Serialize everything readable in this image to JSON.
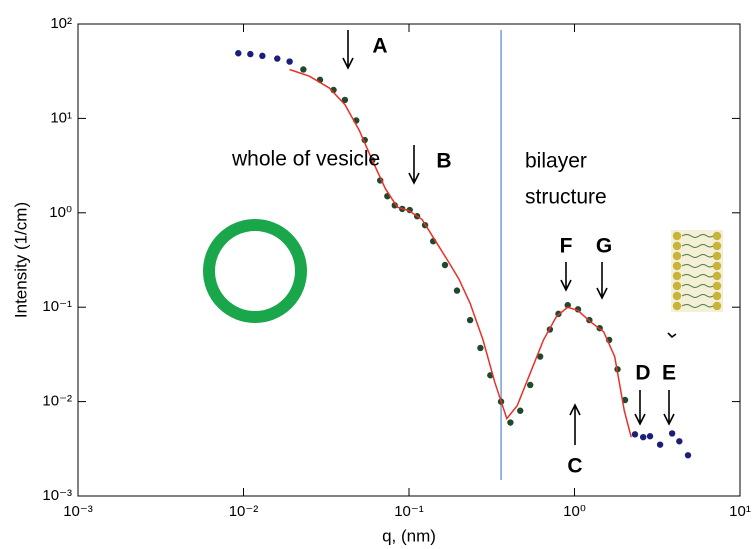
{
  "chart_data": {
    "type": "scatter",
    "xlabel": "q, (nm)",
    "ylabel": "Intensity  (1/cm)",
    "log_x": true,
    "log_y": true,
    "xlim": [
      0.001,
      10
    ],
    "ylim": [
      0.001,
      100
    ],
    "xticks": [
      {
        "value": 0.001,
        "label": "10⁻³"
      },
      {
        "value": 0.01,
        "label": "10⁻²"
      },
      {
        "value": 0.1,
        "label": "10⁻¹"
      },
      {
        "value": 1,
        "label": "10⁰"
      },
      {
        "value": 10,
        "label": "10¹"
      }
    ],
    "yticks": [
      {
        "value": 0.001,
        "label": "10⁻³"
      },
      {
        "value": 0.01,
        "label": "10⁻²"
      },
      {
        "value": 0.1,
        "label": "10⁻¹"
      },
      {
        "value": 1,
        "label": "10⁰"
      },
      {
        "value": 10,
        "label": "10¹"
      },
      {
        "value": 100,
        "label": "10²"
      }
    ],
    "color": "#1d4a2a",
    "x": [
      0.0093,
      0.011,
      0.013,
      0.016,
      0.019,
      0.023,
      0.029,
      0.035,
      0.041,
      0.048,
      0.054,
      0.06,
      0.067,
      0.074,
      0.082,
      0.091,
      0.101,
      0.112,
      0.125,
      0.14,
      0.165,
      0.195,
      0.234,
      0.27,
      0.31,
      0.36,
      0.41,
      0.47,
      0.54,
      0.62,
      0.71,
      0.8,
      0.91,
      1.05,
      1.23,
      1.42,
      1.62,
      1.82,
      2.02,
      2.32,
      2.6,
      2.86,
      3.29,
      3.89,
      4.3,
      4.85
    ],
    "values": [
      49,
      48,
      46,
      43,
      40,
      33,
      25.6,
      20,
      15.7,
      9.5,
      5.9,
      3.6,
      2.2,
      1.5,
      1.2,
      1.1,
      1.07,
      0.92,
      0.74,
      0.5,
      0.28,
      0.15,
      0.073,
      0.037,
      0.019,
      0.01,
      0.006,
      0.008,
      0.015,
      0.03,
      0.058,
      0.085,
      0.105,
      0.095,
      0.073,
      0.06,
      0.045,
      0.022,
      0.0104,
      0.0045,
      0.0042,
      0.0043,
      0.0035,
      0.0046,
      0.0038,
      0.0027
    ],
    "fit": {
      "color": "#e8302a",
      "x": [
        0.019,
        0.025,
        0.033,
        0.041,
        0.05,
        0.06,
        0.072,
        0.085,
        0.1,
        0.12,
        0.14,
        0.17,
        0.2,
        0.234,
        0.28,
        0.33,
        0.39,
        0.45,
        0.54,
        0.65,
        0.78,
        0.91,
        1.05,
        1.25,
        1.5,
        1.75,
        2.0,
        2.2
      ],
      "values": [
        33,
        28,
        21,
        14,
        7.5,
        3.6,
        1.8,
        1.15,
        1.05,
        0.85,
        0.55,
        0.32,
        0.2,
        0.11,
        0.045,
        0.016,
        0.0066,
        0.009,
        0.02,
        0.045,
        0.08,
        0.1,
        0.092,
        0.07,
        0.055,
        0.03,
        0.008,
        0.0042
      ]
    },
    "reference_line": {
      "x": 0.36,
      "color": "#5b8fd6"
    },
    "annotations": [
      "A",
      "B",
      "whole of vesicle",
      "bilayer",
      "structure",
      "F",
      "G",
      "C",
      "D",
      "E"
    ]
  }
}
